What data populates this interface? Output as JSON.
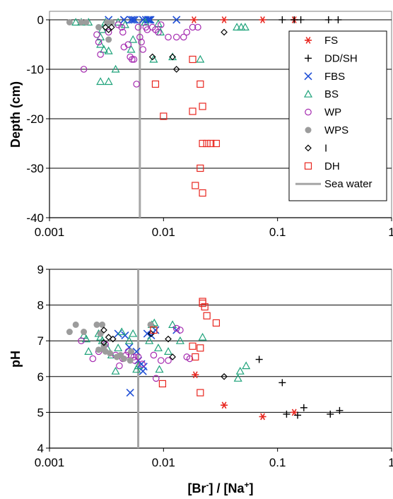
{
  "chart_data": [
    {
      "type": "scatter",
      "xscale": "log",
      "xlim": [
        0.001,
        1
      ],
      "ylim": [
        -40,
        0
      ],
      "grid": true,
      "ylabel": "Depth (cm)",
      "xlabel": "",
      "xticks": [
        "0.001",
        "0.01",
        "0.1",
        "1"
      ],
      "yticks": [
        "0",
        "-10",
        "-20",
        "-30",
        "-40"
      ],
      "legend_position": "right",
      "reference_line": {
        "name": "Sea water",
        "x": 0.0062,
        "color": "#a6a6a6"
      },
      "series": [
        {
          "name": "FS",
          "marker": "asterisk",
          "color": "#e8261f",
          "points": [
            [
              0.0185,
              0
            ],
            [
              0.034,
              0
            ],
            [
              0.074,
              0
            ],
            [
              0.14,
              0
            ]
          ]
        },
        {
          "name": "DD/SH",
          "marker": "plus",
          "color": "#000000",
          "points": [
            [
              0.11,
              0
            ],
            [
              0.14,
              0
            ],
            [
              0.16,
              0
            ],
            [
              0.28,
              0
            ],
            [
              0.34,
              0
            ]
          ]
        },
        {
          "name": "FBS",
          "marker": "cross",
          "color": "#1f4fd6",
          "points": [
            [
              0.0033,
              0
            ],
            [
              0.0045,
              0
            ],
            [
              0.0052,
              0
            ],
            [
              0.0054,
              0
            ],
            [
              0.0056,
              0
            ],
            [
              0.0066,
              0
            ],
            [
              0.007,
              0
            ],
            [
              0.0073,
              0
            ],
            [
              0.0075,
              0
            ],
            [
              0.0077,
              0
            ],
            [
              0.013,
              0
            ]
          ]
        },
        {
          "name": "BS",
          "marker": "triangle",
          "color": "#1ea27a",
          "points": [
            [
              0.0017,
              -0.5
            ],
            [
              0.0019,
              -0.5
            ],
            [
              0.0022,
              -0.5
            ],
            [
              0.0031,
              -0.5
            ],
            [
              0.004,
              -0.5
            ],
            [
              0.0046,
              -1
            ],
            [
              0.0029,
              -2
            ],
            [
              0.0028,
              -3.5
            ],
            [
              0.003,
              -6
            ],
            [
              0.0033,
              -6.3
            ],
            [
              0.0028,
              -5
            ],
            [
              0.0038,
              -10
            ],
            [
              0.0069,
              -0.5
            ],
            [
              0.009,
              -0.8
            ],
            [
              0.0094,
              -2.5
            ],
            [
              0.0054,
              -4
            ],
            [
              0.0052,
              -6
            ],
            [
              0.0082,
              -8
            ],
            [
              0.012,
              -7.5
            ],
            [
              0.021,
              -8
            ],
            [
              0.044,
              -1.5
            ],
            [
              0.048,
              -1.5
            ],
            [
              0.052,
              -1.5
            ],
            [
              0.0028,
              -12.5
            ],
            [
              0.0033,
              -12.5
            ]
          ]
        },
        {
          "name": "WP",
          "marker": "circle",
          "color": "#a52ab0",
          "points": [
            [
              0.002,
              -10
            ],
            [
              0.0026,
              -3
            ],
            [
              0.0027,
              -4.5
            ],
            [
              0.0028,
              -7
            ],
            [
              0.0033,
              -2.5
            ],
            [
              0.004,
              -1
            ],
            [
              0.0043,
              -1.5
            ],
            [
              0.0044,
              -2.5
            ],
            [
              0.0049,
              -5
            ],
            [
              0.0051,
              -7.5
            ],
            [
              0.0053,
              -8
            ],
            [
              0.0055,
              -8
            ],
            [
              0.0058,
              -13
            ],
            [
              0.006,
              -1.5
            ],
            [
              0.0062,
              -3.5
            ],
            [
              0.0064,
              -4.5
            ],
            [
              0.0066,
              -6
            ],
            [
              0.007,
              -1.5
            ],
            [
              0.0072,
              -2
            ],
            [
              0.008,
              -1.5
            ],
            [
              0.0085,
              -2
            ],
            [
              0.009,
              -2.5
            ],
            [
              0.011,
              -3.5
            ],
            [
              0.013,
              -3.5
            ],
            [
              0.015,
              -3.5
            ],
            [
              0.016,
              -2.5
            ],
            [
              0.018,
              -1.5
            ],
            [
              0.02,
              -1.5
            ],
            [
              0.0095,
              -1
            ],
            [
              0.0045,
              -5.5
            ]
          ]
        },
        {
          "name": "WPS",
          "marker": "dot",
          "color": "#9c9c9c",
          "points": [
            [
              0.0015,
              -0.5
            ],
            [
              0.0019,
              -0.5
            ],
            [
              0.0021,
              -0.5
            ],
            [
              0.0032,
              -0.5
            ],
            [
              0.0035,
              -0.5
            ],
            [
              0.0027,
              -1.5
            ],
            [
              0.0033,
              -4
            ]
          ]
        },
        {
          "name": "I",
          "marker": "diamond",
          "color": "#000000",
          "points": [
            [
              0.0031,
              -1.5
            ],
            [
              0.0033,
              -2
            ],
            [
              0.0035,
              -1.5
            ],
            [
              0.008,
              -7.5
            ],
            [
              0.012,
              -7.5
            ],
            [
              0.013,
              -10
            ],
            [
              0.034,
              -2.5
            ]
          ]
        },
        {
          "name": "DH",
          "marker": "square",
          "color": "#e8261f",
          "points": [
            [
              0.0085,
              -13
            ],
            [
              0.01,
              -19.5
            ],
            [
              0.018,
              -8
            ],
            [
              0.018,
              -18.5
            ],
            [
              0.021,
              -13
            ],
            [
              0.022,
              -17.5
            ],
            [
              0.022,
              -25
            ],
            [
              0.024,
              -25
            ],
            [
              0.026,
              -25
            ],
            [
              0.029,
              -25
            ],
            [
              0.021,
              -30
            ],
            [
              0.019,
              -33.5
            ],
            [
              0.022,
              -35
            ]
          ]
        }
      ]
    },
    {
      "type": "scatter",
      "xscale": "log",
      "xlim": [
        0.001,
        1
      ],
      "ylim": [
        4,
        9
      ],
      "grid": true,
      "ylabel": "pH",
      "xlabel": "[Br⁻] / [Na⁺]",
      "xticks": [
        "0.001",
        "0.01",
        "0.1",
        "1"
      ],
      "yticks": [
        "9",
        "8",
        "7",
        "6",
        "5",
        "4"
      ],
      "reference_line": {
        "name": "Sea water",
        "x": 0.006,
        "color": "#a6a6a6"
      },
      "series": [
        {
          "name": "FS",
          "marker": "asterisk",
          "color": "#e8261f",
          "points": [
            [
              0.019,
              6.05
            ],
            [
              0.034,
              5.2
            ],
            [
              0.074,
              4.88
            ],
            [
              0.14,
              5.0
            ]
          ]
        },
        {
          "name": "DD/SH",
          "marker": "plus",
          "color": "#000000",
          "points": [
            [
              0.069,
              6.48
            ],
            [
              0.11,
              5.83
            ],
            [
              0.12,
              4.95
            ],
            [
              0.15,
              4.92
            ],
            [
              0.17,
              5.13
            ],
            [
              0.29,
              4.95
            ],
            [
              0.35,
              5.05
            ]
          ]
        },
        {
          "name": "FBS",
          "marker": "cross",
          "color": "#1f4fd6",
          "points": [
            [
              0.004,
              7.2
            ],
            [
              0.0046,
              7.15
            ],
            [
              0.005,
              6.82
            ],
            [
              0.0051,
              5.55
            ],
            [
              0.006,
              6.45
            ],
            [
              0.0064,
              6.35
            ],
            [
              0.0066,
              6.15
            ],
            [
              0.0067,
              6.28
            ],
            [
              0.0072,
              7.2
            ],
            [
              0.0078,
              7.15
            ],
            [
              0.0085,
              7.3
            ],
            [
              0.013,
              7.3
            ],
            [
              0.0058,
              6.7
            ]
          ]
        },
        {
          "name": "BS",
          "marker": "triangle",
          "color": "#1ea27a",
          "points": [
            [
              0.002,
              7.15
            ],
            [
              0.0021,
              7.05
            ],
            [
              0.0027,
              7.2
            ],
            [
              0.0028,
              7.1
            ],
            [
              0.0029,
              7.0
            ],
            [
              0.0032,
              6.8
            ],
            [
              0.0035,
              6.6
            ],
            [
              0.0038,
              6.15
            ],
            [
              0.004,
              6.8
            ],
            [
              0.0043,
              7.25
            ],
            [
              0.005,
              7.0
            ],
            [
              0.0054,
              7.2
            ],
            [
              0.0058,
              6.2
            ],
            [
              0.006,
              6.3
            ],
            [
              0.0075,
              7.0
            ],
            [
              0.0079,
              7.45
            ],
            [
              0.0083,
              7.5
            ],
            [
              0.009,
              6.8
            ],
            [
              0.0092,
              6.2
            ],
            [
              0.011,
              6.7
            ],
            [
              0.012,
              7.45
            ],
            [
              0.014,
              7.0
            ],
            [
              0.022,
              7.1
            ],
            [
              0.045,
              5.95
            ],
            [
              0.047,
              6.15
            ],
            [
              0.053,
              6.3
            ],
            [
              0.0022,
              6.7
            ]
          ]
        },
        {
          "name": "WP",
          "marker": "circle",
          "color": "#a52ab0",
          "points": [
            [
              0.0019,
              7.0
            ],
            [
              0.0024,
              6.5
            ],
            [
              0.0027,
              6.7
            ],
            [
              0.0031,
              6.9
            ],
            [
              0.0038,
              6.6
            ],
            [
              0.0041,
              6.3
            ],
            [
              0.0044,
              6.5
            ],
            [
              0.0047,
              6.6
            ],
            [
              0.0049,
              6.7
            ],
            [
              0.0052,
              6.6
            ],
            [
              0.0055,
              6.55
            ],
            [
              0.006,
              6.55
            ],
            [
              0.0065,
              6.35
            ],
            [
              0.0082,
              6.6
            ],
            [
              0.0086,
              5.95
            ],
            [
              0.0095,
              6.45
            ],
            [
              0.011,
              6.45
            ],
            [
              0.013,
              7.35
            ],
            [
              0.014,
              7.3
            ],
            [
              0.016,
              6.55
            ],
            [
              0.017,
              6.5
            ],
            [
              0.0056,
              6.45
            ]
          ]
        },
        {
          "name": "WPS",
          "marker": "dot",
          "color": "#9c9c9c",
          "points": [
            [
              0.0015,
              7.25
            ],
            [
              0.0017,
              7.45
            ],
            [
              0.002,
              7.25
            ],
            [
              0.0026,
              7.45
            ],
            [
              0.0029,
              7.45
            ],
            [
              0.0028,
              7.2
            ],
            [
              0.003,
              6.75
            ],
            [
              0.0027,
              6.75
            ],
            [
              0.0031,
              6.7
            ],
            [
              0.0034,
              6.65
            ],
            [
              0.0039,
              6.55
            ],
            [
              0.0045,
              6.5
            ],
            [
              0.0051,
              6.45
            ],
            [
              0.0077,
              7.45
            ],
            [
              0.0052,
              6.7
            ],
            [
              0.0042,
              6.6
            ],
            [
              0.003,
              6.85
            ]
          ]
        },
        {
          "name": "I",
          "marker": "diamond",
          "color": "#000000",
          "points": [
            [
              0.003,
              7.3
            ],
            [
              0.003,
              6.95
            ],
            [
              0.0033,
              7.1
            ],
            [
              0.0036,
              7.05
            ],
            [
              0.0078,
              7.2
            ],
            [
              0.011,
              7.05
            ],
            [
              0.012,
              6.55
            ],
            [
              0.034,
              6.0
            ]
          ]
        },
        {
          "name": "DH",
          "marker": "square",
          "color": "#e8261f",
          "points": [
            [
              0.0082,
              7.3
            ],
            [
              0.0098,
              5.8
            ],
            [
              0.018,
              6.85
            ],
            [
              0.019,
              6.55
            ],
            [
              0.021,
              6.8
            ],
            [
              0.021,
              5.55
            ],
            [
              0.022,
              8.1
            ],
            [
              0.022,
              8.05
            ],
            [
              0.023,
              7.95
            ],
            [
              0.024,
              7.7
            ],
            [
              0.029,
              7.5
            ]
          ]
        }
      ]
    }
  ],
  "legend": {
    "items": [
      {
        "label": "FS",
        "marker": "asterisk",
        "color": "#e8261f"
      },
      {
        "label": "DD/SH",
        "marker": "plus",
        "color": "#000000"
      },
      {
        "label": "FBS",
        "marker": "cross",
        "color": "#1f4fd6"
      },
      {
        "label": "BS",
        "marker": "triangle",
        "color": "#1ea27a"
      },
      {
        "label": "WP",
        "marker": "circle",
        "color": "#a52ab0"
      },
      {
        "label": "WPS",
        "marker": "dot",
        "color": "#9c9c9c"
      },
      {
        "label": "I",
        "marker": "diamond",
        "color": "#000000"
      },
      {
        "label": "DH",
        "marker": "square",
        "color": "#e8261f"
      },
      {
        "label": "Sea water",
        "marker": "line",
        "color": "#a6a6a6"
      }
    ]
  }
}
